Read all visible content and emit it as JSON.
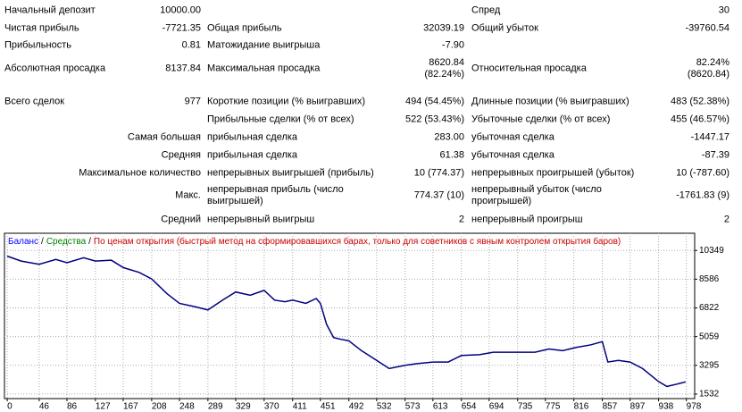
{
  "table": {
    "rows": [
      [
        "Начальный депозит",
        "10000.00",
        null,
        null,
        "Спред",
        "30"
      ],
      [
        "Чистая прибыль",
        "-7721.35",
        "Общая прибыль",
        "32039.19",
        "Общий убыток",
        "-39760.54"
      ],
      [
        "Прибыльность",
        "0.81",
        "Матожидание выигрыша",
        "-7.90",
        null,
        null
      ],
      [
        "Абсолютная просадка",
        "8137.84",
        "Максимальная просадка",
        "8620.84\n(82.24%)",
        "Относительная просадка",
        "82.24%\n(8620.84)"
      ],
      [
        "Всего сделок",
        "977",
        "Короткие позиции (% выигравших)",
        "494 (54.45%)",
        "Длинные позиции (% выигравших)",
        "483 (52.38%)"
      ],
      [
        null,
        null,
        "Прибыльные сделки (% от всех)",
        "522 (53.43%)",
        "Убыточные сделки (% от всех)",
        "455 (46.57%)"
      ],
      [
        null,
        "Самая большая",
        "прибыльная сделка",
        "283.00",
        "убыточная сделка",
        "-1447.17"
      ],
      [
        null,
        "Средняя",
        "прибыльная сделка",
        "61.38",
        "убыточная сделка",
        "-87.39"
      ],
      [
        null,
        "Максимальное количество",
        "непрерывных выигрышей (прибыль)",
        "10 (774.37)",
        "непрерывных проигрышей (убыток)",
        "10 (-787.60)"
      ],
      [
        null,
        "Макс.",
        "непрерывная прибыль (число\nвыигрышей)",
        "774.37 (10)",
        "непрерывный убыток (число\nпроигрышей)",
        "-1761.83 (9)"
      ],
      [
        null,
        "Средний",
        "непрерывный выигрыш",
        "2",
        "непрерывный проигрыш",
        "2"
      ]
    ]
  },
  "chart_data": {
    "type": "line",
    "legend": [
      {
        "text": "Баланс",
        "color": "#0000ff"
      },
      {
        "text": "Средства",
        "color": "#008000"
      },
      {
        "text": "По ценам открытия (быстрый метод на сформировавшихся барах, только для советников с явным контролем открытия баров)",
        "color": "#cc0000"
      }
    ],
    "separator": "/",
    "x": [
      0,
      20,
      46,
      70,
      86,
      110,
      127,
      150,
      167,
      190,
      208,
      230,
      248,
      270,
      289,
      310,
      329,
      350,
      370,
      385,
      400,
      411,
      430,
      445,
      451,
      460,
      470,
      480,
      492,
      510,
      532,
      550,
      573,
      590,
      613,
      635,
      654,
      680,
      700,
      735,
      760,
      780,
      800,
      820,
      840,
      857,
      865,
      880,
      897,
      915,
      938,
      950,
      965,
      977
    ],
    "series": [
      {
        "color": "#000080",
        "values": [
          10000,
          9700,
          9500,
          9800,
          9600,
          9900,
          9700,
          9750,
          9300,
          9000,
          8600,
          7700,
          7100,
          6900,
          6700,
          7300,
          7800,
          7600,
          7900,
          7300,
          7200,
          7300,
          7100,
          7400,
          7100,
          5800,
          5000,
          4900,
          4800,
          4200,
          3600,
          3100,
          3300,
          3400,
          3500,
          3500,
          3900,
          3950,
          4100,
          4100,
          4100,
          4300,
          4200,
          4400,
          4550,
          4750,
          3500,
          3600,
          3500,
          3100,
          2300,
          2000,
          2150,
          2279
        ]
      }
    ],
    "xlim": [
      -4,
      990
    ],
    "ylim": [
      1254,
      11406
    ],
    "xticks": [
      0,
      46,
      86,
      127,
      167,
      208,
      248,
      289,
      329,
      370,
      411,
      451,
      492,
      532,
      573,
      613,
      654,
      694,
      735,
      775,
      816,
      857,
      897,
      938,
      978
    ],
    "yticks": [
      1532,
      3295,
      5059,
      6822,
      8586,
      10349
    ],
    "grid": true
  }
}
